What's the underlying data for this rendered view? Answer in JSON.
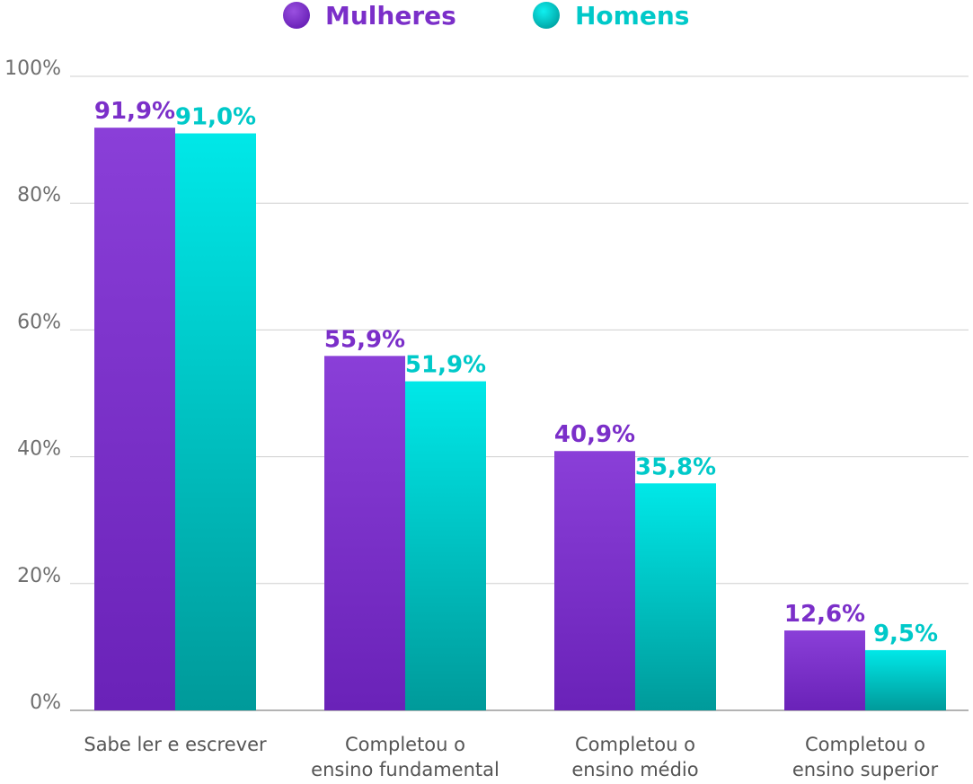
{
  "chart_data": {
    "type": "bar",
    "title": "",
    "xlabel": "",
    "ylabel": "",
    "ylim": [
      0,
      100
    ],
    "yticks": [
      "0%",
      "20%",
      "40%",
      "60%",
      "80%",
      "100%"
    ],
    "categories": [
      [
        "Sabe ler e escrever"
      ],
      [
        "Completou o",
        "ensino fundamental"
      ],
      [
        "Completou o",
        "ensino médio"
      ],
      [
        "Completou o",
        "ensino superior"
      ]
    ],
    "series": [
      {
        "name": "Mulheres",
        "color": "#7b2fc9",
        "values": [
          91.9,
          55.9,
          40.9,
          12.6
        ],
        "labels": [
          "91,9%",
          "55,9%",
          "40,9%",
          "12,6%"
        ]
      },
      {
        "name": "Homens",
        "color": "#00c9c9",
        "values": [
          91.0,
          51.9,
          35.8,
          9.5
        ],
        "labels": [
          "91,0%",
          "51,9%",
          "35,8%",
          "9,5%"
        ]
      }
    ],
    "legend": "top-center",
    "grid": true
  }
}
